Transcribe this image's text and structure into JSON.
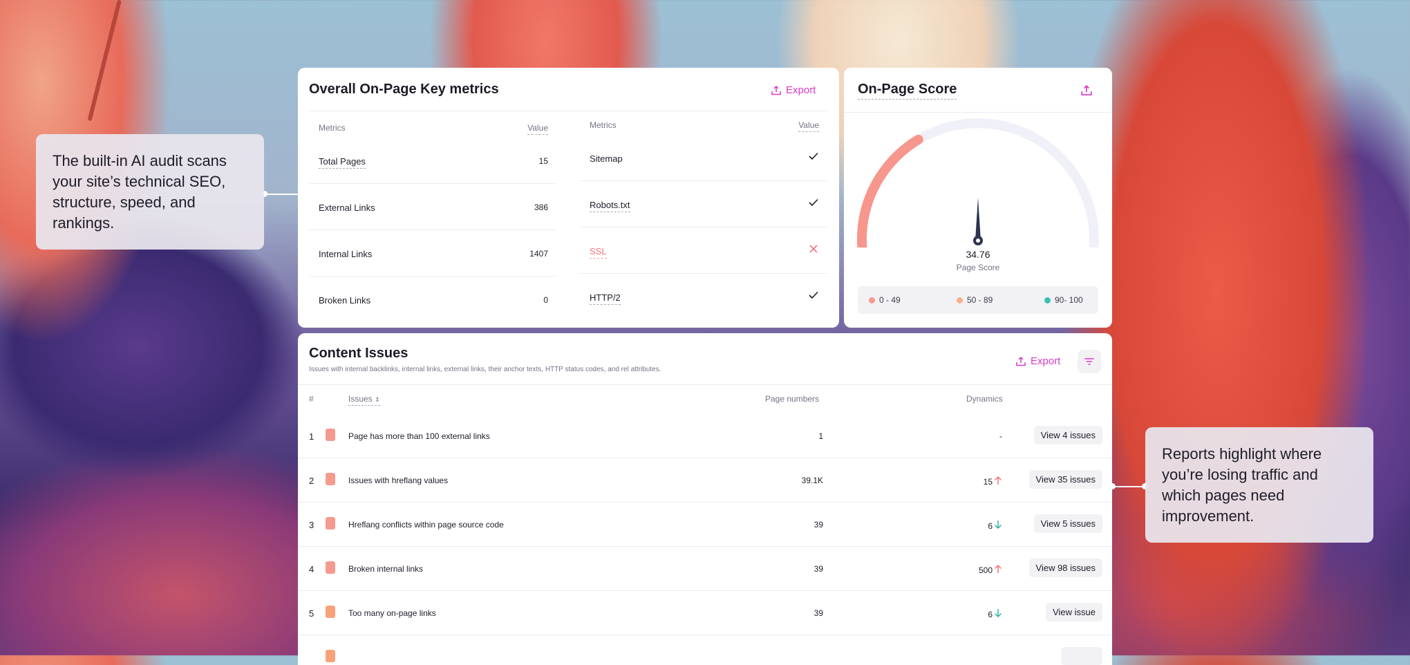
{
  "metrics": {
    "title": "Overall On-Page Key metrics",
    "export_label": "Export",
    "left": {
      "col_metric": "Metrics",
      "col_value": "Value",
      "rows": [
        {
          "label": "Total Pages",
          "value": "15"
        },
        {
          "label": "External Links",
          "value": "386"
        },
        {
          "label": "Internal Links",
          "value": "1407"
        },
        {
          "label": "Broken Links",
          "value": "0"
        }
      ]
    },
    "right": {
      "col_metric": "Metrics",
      "col_value": "Value",
      "rows": [
        {
          "label": "Sitemap",
          "status": "check"
        },
        {
          "label": "Robots.txt",
          "status": "check"
        },
        {
          "label": "SSL",
          "status": "cross"
        },
        {
          "label": "HTTP/2",
          "status": "check"
        }
      ]
    }
  },
  "score": {
    "title": "On-Page Score",
    "value": "34.76",
    "value_num": 34.76,
    "max": 100,
    "label": "Page Score",
    "legend": [
      {
        "label": "0 - 49",
        "color": "#f59a8e"
      },
      {
        "label": "50 - 89",
        "color": "#f8b08a"
      },
      {
        "label": "90- 100",
        "color": "#3cbfb0"
      }
    ],
    "arc_color": "#f7968c",
    "track_color": "#f0f0f8"
  },
  "issues": {
    "title": "Content Issues",
    "subtitle": "Issues with internal backlinks, internal links, external links, their anchor texts, HTTP status codes, and rel attributes.",
    "export_label": "Export",
    "columns": {
      "num": "#",
      "issue": "Issues",
      "pages": "Page numbers",
      "dynamics": "Dynamics"
    },
    "rows": [
      {
        "num": "1",
        "issue": "Page has more than 100 external links",
        "pages": "1",
        "dynamics": "-",
        "trend": "none",
        "action": "View 4 issues",
        "color": "#f59a8e"
      },
      {
        "num": "2",
        "issue": "Issues with hreflang values",
        "pages": "39.1K",
        "dynamics": "15",
        "trend": "up",
        "action": "View 35 issues",
        "color": "#f59a8e"
      },
      {
        "num": "3",
        "issue": "Hreflang conflicts within page source code",
        "pages": "39",
        "dynamics": "6",
        "trend": "down",
        "action": "View 5 issues",
        "color": "#f59a8e"
      },
      {
        "num": "4",
        "issue": "Broken internal links",
        "pages": "39",
        "dynamics": "500",
        "trend": "up",
        "action": "View 98 issues",
        "color": "#f59a8e"
      },
      {
        "num": "5",
        "issue": "Too many on-page links",
        "pages": "39",
        "dynamics": "6",
        "trend": "down",
        "action": "View issue",
        "color": "#f8a27a"
      }
    ]
  },
  "callouts": {
    "left": "The built-in AI audit scans your site’s technical SEO, structure, speed, and rankings.",
    "right": "Reports highlight where you’re losing traffic and which pages need improvement."
  },
  "colors": {
    "accent": "#d63ac8",
    "up": "#f07478",
    "down": "#2fb3a3",
    "cross": "#f07478"
  }
}
